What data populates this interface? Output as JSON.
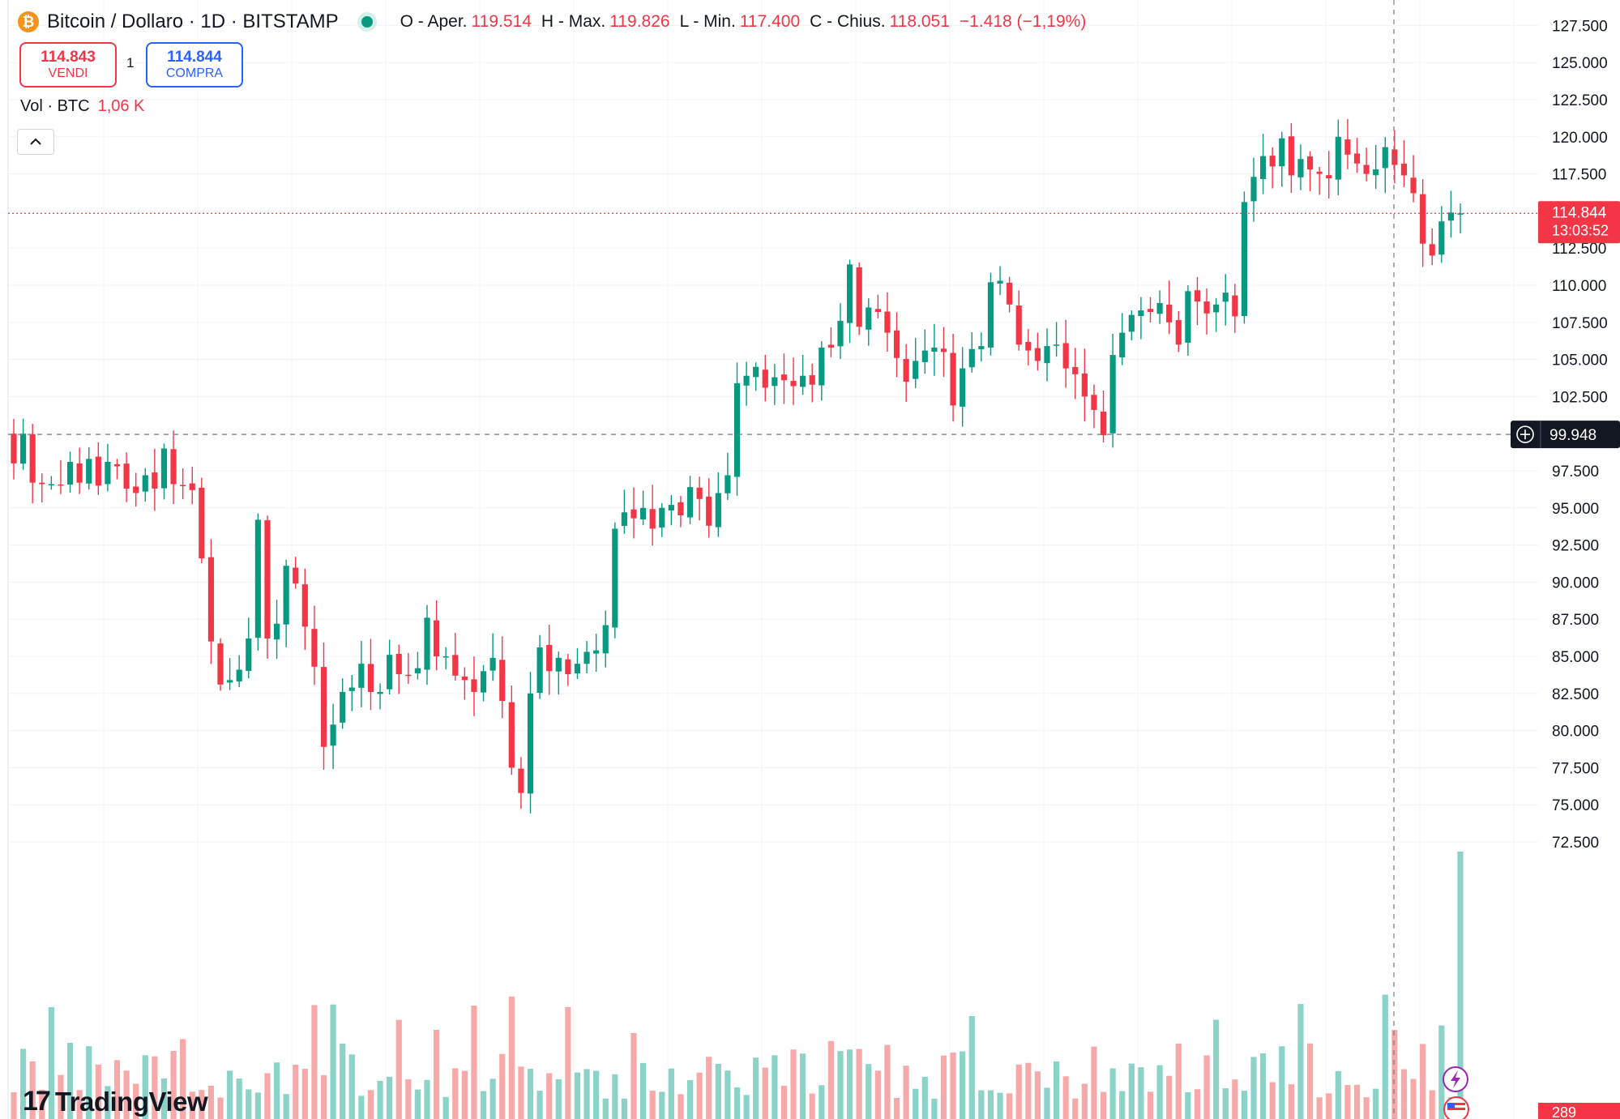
{
  "header": {
    "coin_symbol": "₿",
    "title": "Bitcoin / Dollaro · 1D · BITSTAMP",
    "open_label": "O - Aper.",
    "open_value": "119.514",
    "high_label": "H - Max.",
    "high_value": "119.826",
    "low_label": "L - Min.",
    "low_value": "117.400",
    "close_label": "C - Chius.",
    "close_value": "118.051",
    "change": "−1.418 (−1,19%)"
  },
  "trade": {
    "sell_price": "114.843",
    "sell_label": "VENDI",
    "spread": "1",
    "buy_price": "114.844",
    "buy_label": "COMPRA"
  },
  "volume": {
    "label": "Vol · BTC",
    "value": "1,06 K"
  },
  "price_tag": {
    "price": "114.844",
    "countdown": "13:03:52"
  },
  "crosshair_tag": {
    "price": "99.948"
  },
  "volume_tag": "289",
  "brand": {
    "name": "TradingView",
    "mark": "17"
  },
  "colors": {
    "up": "#089981",
    "down": "#f23645",
    "up_vol": "#8ad3c6",
    "down_vol": "#f7a9a9"
  },
  "chart_data": {
    "type": "candlestick",
    "symbol": "BTCUSD",
    "interval": "1D",
    "exchange": "BITSTAMP",
    "y_ticks": [
      "127.500",
      "125.000",
      "122.500",
      "120.000",
      "117.500",
      "114.844",
      "112.500",
      "110.000",
      "107.500",
      "105.000",
      "102.500",
      "99.948",
      "97.500",
      "95.000",
      "92.500",
      "90.000",
      "87.500",
      "85.000",
      "82.500",
      "80.000",
      "77.500",
      "75.000",
      "72.500"
    ],
    "ylim": [
      71000,
      128500
    ],
    "last_price": 114844,
    "crosshair_price": 99948,
    "closes": [
      98000,
      100000,
      96700,
      96600,
      96600,
      96500,
      98100,
      96700,
      98300,
      96500,
      98100,
      97800,
      96300,
      96000,
      97200,
      96300,
      99000,
      96600,
      96500,
      96200,
      91600,
      86000,
      83100,
      83400,
      84100,
      86200,
      94200,
      86200,
      87200,
      91100,
      89900,
      87000,
      84300,
      78900,
      80400,
      82600,
      82900,
      84500,
      82600,
      82600,
      85100,
      83800,
      83700,
      84200,
      87600,
      85000,
      85000,
      83700,
      83400,
      82600,
      84000,
      84900,
      82000,
      77500,
      75800,
      82500,
      85600,
      84000,
      84900,
      83800,
      84500,
      85300,
      85400,
      87100,
      93600,
      94700,
      94300,
      95000,
      93600,
      95000,
      95200,
      94500,
      96400,
      95600,
      93800,
      96000,
      97200,
      103400,
      103900,
      104500,
      103100,
      103800,
      103600,
      103200,
      103900,
      103300,
      105800,
      105800,
      107600,
      111400,
      107200,
      108500,
      108200,
      106800,
      105100,
      103500,
      104900,
      105600,
      105800,
      105500,
      101900,
      104400,
      105700,
      105900,
      110200,
      110300,
      108700,
      106000,
      105600,
      104900,
      105900,
      106000,
      104400,
      104000,
      102500,
      101600,
      99900,
      105300,
      106800,
      108000,
      108300,
      108200,
      108800,
      107500,
      106000,
      109600,
      108900,
      108100,
      108700,
      109500,
      107900,
      115600,
      117300,
      118700,
      118000,
      119900,
      117400,
      118500,
      117800,
      117500,
      117200,
      120000,
      118800,
      118200,
      117500,
      117800,
      119300,
      118100,
      117400,
      116200,
      112800,
      112000,
      114300,
      114900,
      114844
    ]
  }
}
